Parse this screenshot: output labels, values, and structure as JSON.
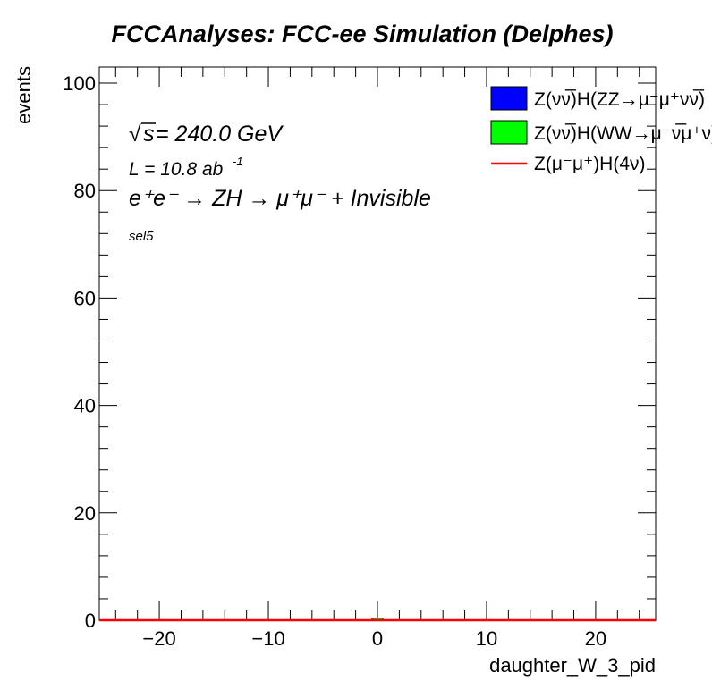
{
  "chart_data": {
    "type": "bar",
    "title": "FCCAnalyses: FCC-ee Simulation (Delphes)",
    "xlabel": "daughter_W_3_pid",
    "ylabel": "events",
    "xlim": [
      -25.5,
      25.5
    ],
    "ylim": [
      0,
      103
    ],
    "xticks": [
      -20,
      -10,
      0,
      10,
      20
    ],
    "xtick_labels": [
      "−20",
      "−10",
      "0",
      "10",
      "20"
    ],
    "yticks": [
      0,
      20,
      40,
      60,
      80,
      100
    ],
    "ytick_labels": [
      "0",
      "20",
      "40",
      "60",
      "80",
      "100"
    ],
    "grid": false,
    "legend_position": "top-right",
    "bin_width": 1,
    "series": [
      {
        "name": "Z(νν̅)H(ZZ→μ⁻μ⁺νν̅)",
        "kind": "stacked-fill",
        "color": "#0000ff",
        "bins": [
          {
            "x": 0,
            "value": 0
          }
        ]
      },
      {
        "name": "Z(νν̅)H(WW→μ⁻ν̅μ⁺ν)",
        "kind": "stacked-fill",
        "color": "#00ff00",
        "bins": [
          {
            "x": 0,
            "value": 0.4
          }
        ]
      },
      {
        "name": "Z(μ⁻μ⁺)H(4ν)",
        "kind": "line",
        "color": "#ff0000",
        "bins": [
          {
            "x": 0,
            "value": 0
          }
        ]
      }
    ],
    "annotations": {
      "sqrt_s": "s",
      "energy": " = 240.0 GeV",
      "lumi": "L = 10.8 ab",
      "lumi_exp": "-1",
      "process": "e⁺e⁻ → ZH → μ⁺μ⁻ + Invisible",
      "selection": "sel5"
    }
  }
}
